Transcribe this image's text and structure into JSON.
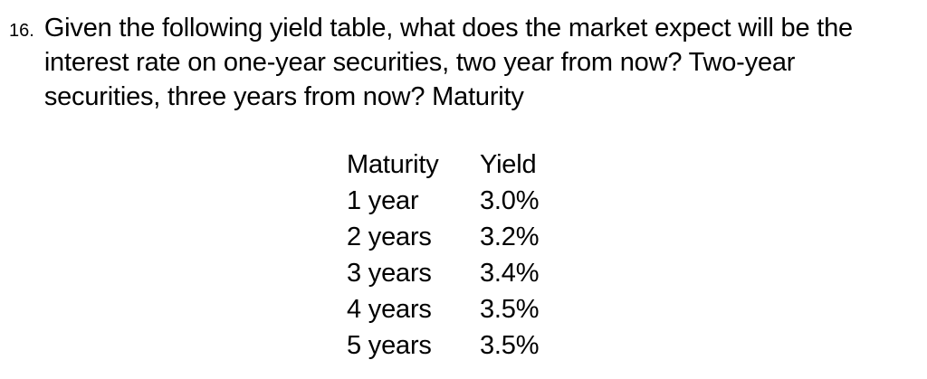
{
  "page": {
    "background_color": "#ffffff",
    "text_color": "#000000"
  },
  "question": {
    "number": "16.",
    "lines": [
      "Given the following yield table, what does the market expect will be the",
      "interest rate on one-year securities, two year from now? Two-year",
      "securities, three years from now? Maturity"
    ]
  },
  "yield_table": {
    "columns": [
      "Maturity",
      "Yield"
    ],
    "rows": [
      {
        "maturity": "1 year",
        "yield": "3.0%"
      },
      {
        "maturity": "2 years",
        "yield": "3.2%"
      },
      {
        "maturity": "3 years",
        "yield": "3.4%"
      },
      {
        "maturity": "4 years",
        "yield": "3.5%"
      },
      {
        "maturity": "5 years",
        "yield": "3.5%"
      }
    ]
  }
}
